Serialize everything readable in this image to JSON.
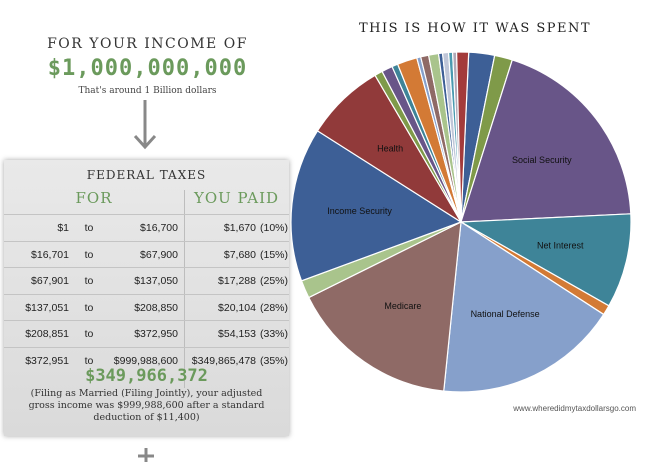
{
  "income": {
    "title": "FOR YOUR INCOME OF",
    "amount": "$1,000,000,000",
    "note": "That's around 1 Billion dollars"
  },
  "tax_table": {
    "title": "FEDERAL TAXES",
    "col_for": "FOR",
    "col_paid": "YOU PAID",
    "to_word": "to",
    "rows": [
      {
        "from": "$1",
        "to": "$16,700",
        "paid": "$1,670",
        "pct": "(10%)"
      },
      {
        "from": "$16,701",
        "to": "$67,900",
        "paid": "$7,680",
        "pct": "(15%)"
      },
      {
        "from": "$67,901",
        "to": "$137,050",
        "paid": "$17,288",
        "pct": "(25%)"
      },
      {
        "from": "$137,051",
        "to": "$208,850",
        "paid": "$20,104",
        "pct": "(28%)"
      },
      {
        "from": "$208,851",
        "to": "$372,950",
        "paid": "$54,153",
        "pct": "(33%)"
      },
      {
        "from": "$372,951",
        "to": "$999,988,600",
        "paid": "$349,865,478",
        "pct": "(35%)"
      }
    ],
    "total": "$349,966,372",
    "total_note": "(Filing as Married (Filing Jointly), your adjusted gross income was $999,988,600 after a standard deduction of $11,400)"
  },
  "credit": "www.wheredidmytaxdollarsgo.com",
  "chart_data": {
    "type": "pie",
    "title": "THIS IS HOW IT WAS SPENT",
    "slices": [
      {
        "label": "",
        "value": 2.6,
        "color": "#3d5f96"
      },
      {
        "label": "",
        "value": 1.8,
        "color": "#7f9a49"
      },
      {
        "label": "Social Security",
        "value": 20.5,
        "color": "#685588"
      },
      {
        "label": "Net Interest",
        "value": 9.5,
        "color": "#3e8498"
      },
      {
        "label": "",
        "value": 1.0,
        "color": "#d37a35"
      },
      {
        "label": "National Defense",
        "value": 18.5,
        "color": "#86a0cb"
      },
      {
        "label": "Medicare",
        "value": 17.0,
        "color": "#8f6a66"
      },
      {
        "label": "",
        "value": 1.8,
        "color": "#a9c48c"
      },
      {
        "label": "Income Security",
        "value": 15.5,
        "color": "#3d5f96"
      },
      {
        "label": "Health",
        "value": 8.0,
        "color": "#913a3a"
      },
      {
        "label": "",
        "value": 0.8,
        "color": "#7f9a49"
      },
      {
        "label": "",
        "value": 1.1,
        "color": "#685588"
      },
      {
        "label": "",
        "value": 0.6,
        "color": "#3e8498"
      },
      {
        "label": "",
        "value": 2.0,
        "color": "#d37a35"
      },
      {
        "label": "",
        "value": 0.4,
        "color": "#86a0cb"
      },
      {
        "label": "",
        "value": 0.8,
        "color": "#8f6a66"
      },
      {
        "label": "",
        "value": 1.0,
        "color": "#a9c48c"
      },
      {
        "label": "",
        "value": 0.4,
        "color": "#3d5f96"
      },
      {
        "label": "",
        "value": 0.6,
        "color": "#bfc6d8"
      },
      {
        "label": "",
        "value": 0.4,
        "color": "#4a9ab0"
      },
      {
        "label": "",
        "value": 0.4,
        "color": "#b0a9b8"
      },
      {
        "label": "",
        "value": 1.2,
        "color": "#a33b3b"
      }
    ],
    "legend": "none"
  },
  "colors": {
    "accent_green": "#6b9a5c"
  }
}
